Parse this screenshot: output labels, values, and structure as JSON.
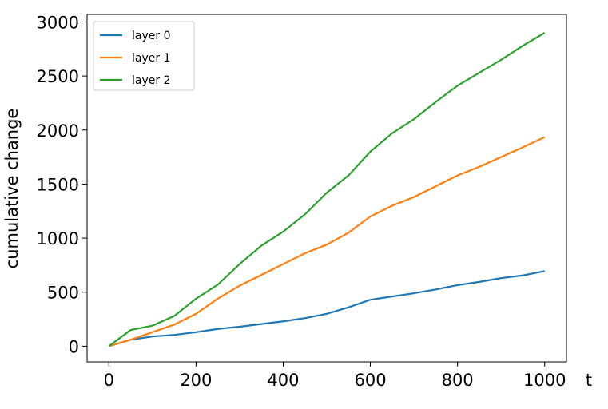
{
  "chart_data": {
    "type": "line",
    "x": [
      0,
      50,
      100,
      150,
      200,
      250,
      300,
      350,
      400,
      450,
      500,
      550,
      600,
      650,
      700,
      750,
      800,
      850,
      900,
      950,
      1000
    ],
    "series": [
      {
        "name": "layer 0",
        "color": "#1f77b4",
        "values": [
          0,
          60,
          90,
          105,
          130,
          160,
          180,
          205,
          230,
          260,
          300,
          360,
          430,
          460,
          490,
          525,
          565,
          595,
          630,
          655,
          695
        ]
      },
      {
        "name": "layer 1",
        "color": "#ff7f0e",
        "values": [
          0,
          60,
          130,
          200,
          300,
          440,
          560,
          660,
          760,
          860,
          940,
          1050,
          1200,
          1300,
          1380,
          1480,
          1580,
          1660,
          1750,
          1840,
          1935
        ]
      },
      {
        "name": "layer 2",
        "color": "#2ca02c",
        "values": [
          0,
          150,
          190,
          280,
          440,
          570,
          760,
          930,
          1060,
          1220,
          1420,
          1580,
          1800,
          1970,
          2100,
          2260,
          2410,
          2530,
          2650,
          2780,
          2900
        ]
      }
    ],
    "x_label": "t",
    "y_label": "cumulative change",
    "xlim": [
      -50,
      1050
    ],
    "xticks": [
      0,
      200,
      400,
      600,
      800,
      1000
    ],
    "ylim": [
      -145,
      3070
    ],
    "yticks": [
      0,
      500,
      1000,
      1500,
      2000,
      2500,
      3000
    ],
    "legend": "upper left"
  }
}
